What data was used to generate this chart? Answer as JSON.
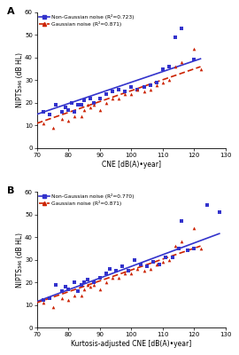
{
  "panel_A": {
    "label": "A",
    "xlabel": "CNE [dB(A)•year]",
    "ylabel": "NIPTS₃₄₆ (dB HL)",
    "xlim": [
      70,
      130
    ],
    "ylim": [
      0,
      60
    ],
    "xticks": [
      70,
      80,
      90,
      100,
      110,
      120,
      130
    ],
    "yticks": [
      0,
      10,
      20,
      30,
      40,
      50,
      60
    ],
    "blue_label": "Non-Gaussian noise (R²=0.723)",
    "red_label": "Gaussian noise (R²=0.871)",
    "blue_dots": [
      [
        72,
        16
      ],
      [
        74,
        15
      ],
      [
        76,
        19
      ],
      [
        78,
        16
      ],
      [
        79,
        18
      ],
      [
        80,
        17
      ],
      [
        81,
        20
      ],
      [
        82,
        16
      ],
      [
        83,
        19
      ],
      [
        84,
        19
      ],
      [
        85,
        21
      ],
      [
        87,
        22
      ],
      [
        88,
        20
      ],
      [
        90,
        22
      ],
      [
        92,
        24
      ],
      [
        94,
        25
      ],
      [
        96,
        26
      ],
      [
        98,
        25
      ],
      [
        100,
        27
      ],
      [
        102,
        26
      ],
      [
        104,
        27
      ],
      [
        106,
        28
      ],
      [
        108,
        29
      ],
      [
        110,
        35
      ],
      [
        112,
        36
      ],
      [
        114,
        49
      ],
      [
        116,
        53
      ],
      [
        120,
        39
      ]
    ],
    "red_triangles": [
      [
        72,
        11
      ],
      [
        75,
        9
      ],
      [
        78,
        13
      ],
      [
        80,
        12
      ],
      [
        82,
        14
      ],
      [
        84,
        14
      ],
      [
        85,
        17
      ],
      [
        86,
        19
      ],
      [
        87,
        18
      ],
      [
        88,
        19
      ],
      [
        90,
        17
      ],
      [
        92,
        20
      ],
      [
        94,
        22
      ],
      [
        96,
        22
      ],
      [
        98,
        24
      ],
      [
        100,
        24
      ],
      [
        102,
        26
      ],
      [
        104,
        25
      ],
      [
        106,
        26
      ],
      [
        108,
        28
      ],
      [
        110,
        29
      ],
      [
        112,
        30
      ],
      [
        114,
        36
      ],
      [
        116,
        38
      ],
      [
        120,
        44
      ],
      [
        122,
        35
      ]
    ],
    "blue_line": [
      [
        70,
        15.0
      ],
      [
        122,
        39.5
      ]
    ],
    "red_line": [
      [
        70,
        11.0
      ],
      [
        122,
        36.0
      ]
    ]
  },
  "panel_B": {
    "label": "B",
    "xlabel": "Kurtosis-adjusted CNE [dB(A)•year]",
    "ylabel": "NIPTS₃₄₆ (dB HL)",
    "xlim": [
      70,
      130
    ],
    "ylim": [
      0,
      60
    ],
    "xticks": [
      70,
      80,
      90,
      100,
      110,
      120,
      130
    ],
    "yticks": [
      0,
      10,
      20,
      30,
      40,
      50,
      60
    ],
    "blue_label": "Non-Gaussian noise (R²=0.770)",
    "red_label": "Gaussian noise (R²=0.871)",
    "blue_dots": [
      [
        72,
        12
      ],
      [
        74,
        13
      ],
      [
        76,
        19
      ],
      [
        78,
        16
      ],
      [
        79,
        18
      ],
      [
        80,
        17
      ],
      [
        82,
        20
      ],
      [
        83,
        16
      ],
      [
        84,
        19
      ],
      [
        85,
        20
      ],
      [
        86,
        21
      ],
      [
        88,
        20
      ],
      [
        90,
        22
      ],
      [
        92,
        24
      ],
      [
        93,
        26
      ],
      [
        95,
        25
      ],
      [
        97,
        27
      ],
      [
        99,
        25
      ],
      [
        101,
        30
      ],
      [
        103,
        28
      ],
      [
        105,
        27
      ],
      [
        107,
        29
      ],
      [
        109,
        28
      ],
      [
        111,
        31
      ],
      [
        113,
        31
      ],
      [
        115,
        35
      ],
      [
        116,
        47
      ],
      [
        118,
        34
      ],
      [
        120,
        35
      ],
      [
        124,
        54
      ],
      [
        128,
        51
      ]
    ],
    "red_triangles": [
      [
        72,
        11
      ],
      [
        75,
        9
      ],
      [
        78,
        13
      ],
      [
        80,
        12
      ],
      [
        82,
        14
      ],
      [
        84,
        14
      ],
      [
        85,
        17
      ],
      [
        86,
        19
      ],
      [
        87,
        18
      ],
      [
        88,
        19
      ],
      [
        90,
        17
      ],
      [
        92,
        20
      ],
      [
        94,
        22
      ],
      [
        96,
        22
      ],
      [
        98,
        24
      ],
      [
        100,
        24
      ],
      [
        102,
        26
      ],
      [
        104,
        25
      ],
      [
        106,
        26
      ],
      [
        108,
        28
      ],
      [
        110,
        29
      ],
      [
        112,
        30
      ],
      [
        114,
        36
      ],
      [
        116,
        38
      ],
      [
        120,
        44
      ],
      [
        122,
        35
      ]
    ],
    "blue_line": [
      [
        70,
        11.5
      ],
      [
        128,
        41.5
      ]
    ],
    "red_line": [
      [
        70,
        11.0
      ],
      [
        122,
        36.0
      ]
    ]
  },
  "blue_color": "#3333cc",
  "red_color": "#cc2200",
  "marker_size_sq": 7,
  "marker_size_tri": 7,
  "line_width": 1.2
}
